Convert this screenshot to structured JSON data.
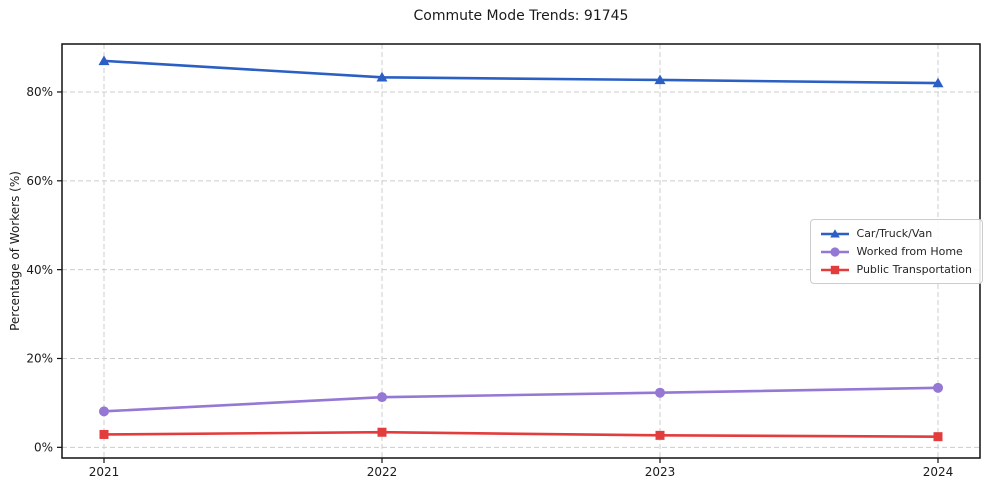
{
  "chart_data": {
    "type": "line",
    "title": "Commute Mode Trends: 91745",
    "xlabel": "",
    "ylabel": "Percentage of Workers (%)",
    "categories": [
      "2021",
      "2022",
      "2023",
      "2024"
    ],
    "series": [
      {
        "name": "Car/Truck/Van",
        "color": "#2b5fc4",
        "marker": "triangle",
        "values": [
          87.0,
          83.3,
          82.7,
          82.0
        ]
      },
      {
        "name": "Worked from Home",
        "color": "#9577d4",
        "marker": "circle",
        "values": [
          8.1,
          11.3,
          12.3,
          13.4
        ]
      },
      {
        "name": "Public Transportation",
        "color": "#e23c3c",
        "marker": "square",
        "values": [
          2.9,
          3.4,
          2.7,
          2.4
        ]
      }
    ],
    "yticks": [
      {
        "value": 0,
        "label": "0%"
      },
      {
        "value": 20,
        "label": "20%"
      },
      {
        "value": 40,
        "label": "40%"
      },
      {
        "value": 60,
        "label": "60%"
      },
      {
        "value": 80,
        "label": "80%"
      }
    ],
    "ylim": [
      -2.4,
      90.8
    ],
    "grid": true,
    "grid_style": "dashed",
    "legend_position": "center right",
    "colors": {
      "grid": "#cccccc",
      "frame": "#111111",
      "background": "#ffffff"
    }
  }
}
